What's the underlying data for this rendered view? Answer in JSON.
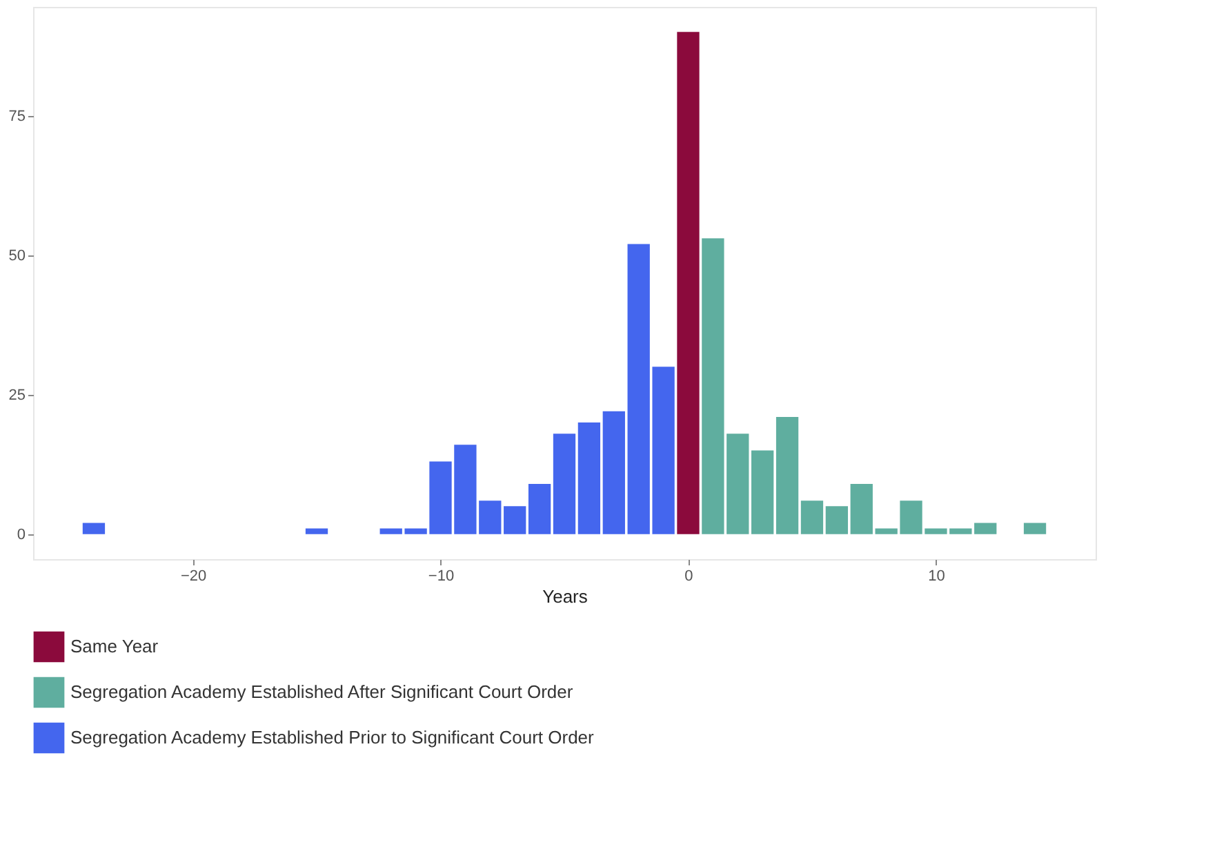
{
  "chart_data": {
    "type": "bar",
    "xlabel": "Years",
    "series": [
      {
        "name": "Same Year",
        "color": "#8b0a3c",
        "x": [
          0
        ],
        "values": [
          90
        ]
      },
      {
        "name": "Segregation Academy Established After Significant Court Order",
        "color": "#5fae9f",
        "x": [
          1,
          2,
          3,
          4,
          5,
          6,
          7,
          8,
          9,
          10,
          11,
          12,
          14
        ],
        "values": [
          53,
          18,
          15,
          21,
          6,
          5,
          9,
          1,
          6,
          1,
          1,
          2,
          2
        ]
      },
      {
        "name": "Segregation Academy Established Prior to Significant Court Order",
        "color": "#4466ee",
        "x": [
          -24,
          -15,
          -12,
          -11,
          -10,
          -9,
          -8,
          -7,
          -6,
          -5,
          -4,
          -3,
          -2,
          -1
        ],
        "values": [
          2,
          1,
          1,
          1,
          13,
          16,
          6,
          5,
          9,
          18,
          20,
          22,
          52,
          30
        ]
      }
    ],
    "xlim": [
      -26.45,
      16.45
    ],
    "xticks": [
      -20,
      -10,
      0,
      10
    ],
    "ylim": [
      -4.5,
      94.5
    ],
    "yticks": [
      0,
      25,
      50,
      75
    ],
    "grid": false,
    "legend": "bottom"
  }
}
